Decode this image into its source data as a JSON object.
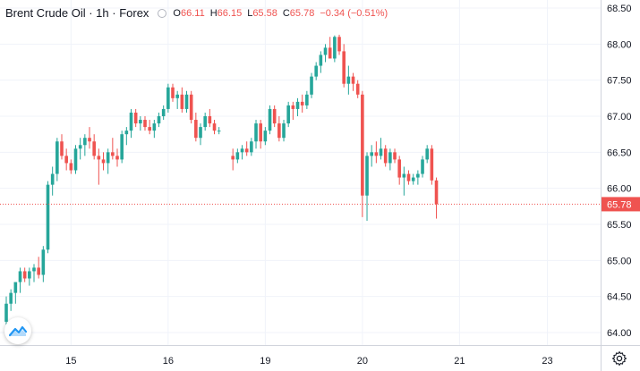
{
  "header": {
    "symbol": "Brent Crude Oil",
    "interval": "1h",
    "exchange": "Forex",
    "open_label": "O",
    "open": "66.11",
    "high_label": "H",
    "high": "66.15",
    "low_label": "L",
    "low": "65.58",
    "close_label": "C",
    "close": "65.78",
    "change": "−0.34 (−0.51%)"
  },
  "colors": {
    "up": "#26a69a",
    "down": "#ef5350",
    "grid": "#f0f3fa",
    "axis_text": "#131722"
  },
  "icons": {
    "logo": "tradingview-logo-icon",
    "settings": "gear-icon"
  },
  "chart_data": {
    "type": "candlestick",
    "title": "Brent Crude Oil · 1h · Forex",
    "xlabel": "",
    "ylabel": "",
    "ylim": [
      63.85,
      68.6
    ],
    "yticks": [
      "64.00",
      "64.50",
      "65.00",
      "65.50",
      "66.00",
      "66.50",
      "67.00",
      "67.50",
      "68.00",
      "68.50"
    ],
    "xticks": [
      {
        "label": "15",
        "index": 14
      },
      {
        "label": "16",
        "index": 35
      },
      {
        "label": "19",
        "index": 56
      },
      {
        "label": "20",
        "index": 77
      },
      {
        "label": "21",
        "index": 98
      },
      {
        "label": "23",
        "index": 117
      }
    ],
    "last_price": "65.78",
    "grid": true,
    "candles": [
      [
        64.15,
        64.5,
        64.1,
        64.4
      ],
      [
        64.4,
        64.6,
        64.3,
        64.55
      ],
      [
        64.55,
        64.7,
        64.4,
        64.7
      ],
      [
        64.7,
        64.9,
        64.55,
        64.85
      ],
      [
        64.85,
        64.9,
        64.7,
        64.75
      ],
      [
        64.75,
        64.9,
        64.65,
        64.85
      ],
      [
        64.85,
        64.95,
        64.7,
        64.9
      ],
      [
        64.9,
        65.05,
        64.75,
        64.8
      ],
      [
        64.8,
        65.2,
        64.7,
        65.15
      ],
      [
        65.15,
        66.1,
        65.1,
        66.05
      ],
      [
        66.05,
        66.3,
        65.9,
        66.2
      ],
      [
        66.2,
        66.7,
        66.1,
        66.65
      ],
      [
        66.65,
        66.75,
        66.4,
        66.45
      ],
      [
        66.45,
        66.55,
        66.25,
        66.35
      ],
      [
        66.35,
        66.4,
        66.2,
        66.25
      ],
      [
        66.25,
        66.6,
        66.2,
        66.55
      ],
      [
        66.55,
        66.7,
        66.4,
        66.6
      ],
      [
        66.6,
        66.75,
        66.45,
        66.7
      ],
      [
        66.7,
        66.85,
        66.55,
        66.65
      ],
      [
        66.65,
        66.75,
        66.4,
        66.45
      ],
      [
        66.45,
        66.55,
        66.05,
        66.4
      ],
      [
        66.4,
        66.5,
        66.25,
        66.35
      ],
      [
        66.35,
        66.55,
        66.2,
        66.5
      ],
      [
        66.5,
        66.7,
        66.4,
        66.45
      ],
      [
        66.45,
        66.55,
        66.3,
        66.4
      ],
      [
        66.4,
        66.8,
        66.35,
        66.75
      ],
      [
        66.75,
        66.85,
        66.6,
        66.8
      ],
      [
        66.8,
        67.1,
        66.7,
        67.05
      ],
      [
        67.05,
        67.1,
        66.85,
        66.9
      ],
      [
        66.9,
        67.0,
        66.8,
        66.95
      ],
      [
        66.95,
        67.0,
        66.8,
        66.85
      ],
      [
        66.85,
        66.95,
        66.75,
        66.8
      ],
      [
        66.8,
        66.95,
        66.7,
        66.9
      ],
      [
        66.9,
        67.05,
        66.85,
        67.0
      ],
      [
        67.0,
        67.15,
        66.95,
        67.1
      ],
      [
        67.1,
        67.45,
        67.05,
        67.4
      ],
      [
        67.4,
        67.45,
        67.2,
        67.25
      ],
      [
        67.25,
        67.35,
        67.1,
        67.3
      ],
      [
        67.3,
        67.4,
        67.05,
        67.1
      ],
      [
        67.1,
        67.35,
        67.05,
        67.3
      ],
      [
        67.3,
        67.35,
        66.9,
        66.95
      ],
      [
        66.95,
        67.05,
        66.65,
        66.7
      ],
      [
        66.7,
        66.9,
        66.6,
        66.85
      ],
      [
        66.85,
        67.05,
        66.8,
        67.0
      ],
      [
        67.0,
        67.1,
        66.85,
        66.9
      ],
      [
        66.9,
        66.95,
        66.75,
        66.8
      ],
      [
        66.8,
        66.85,
        66.75,
        66.8
      ],
      null,
      null,
      [
        66.45,
        66.55,
        66.25,
        66.4
      ],
      [
        66.4,
        66.55,
        66.35,
        66.5
      ],
      [
        66.5,
        66.6,
        66.4,
        66.55
      ],
      [
        66.55,
        66.65,
        66.45,
        66.5
      ],
      [
        66.5,
        66.7,
        66.45,
        66.65
      ],
      [
        66.65,
        66.95,
        66.55,
        66.9
      ],
      [
        66.9,
        66.95,
        66.55,
        66.65
      ],
      [
        66.65,
        66.85,
        66.6,
        66.8
      ],
      [
        66.8,
        67.15,
        66.75,
        67.1
      ],
      [
        67.1,
        67.15,
        66.85,
        66.9
      ],
      [
        66.9,
        67.0,
        66.65,
        66.7
      ],
      [
        66.7,
        66.95,
        66.65,
        66.9
      ],
      [
        66.9,
        67.2,
        66.85,
        67.15
      ],
      [
        67.15,
        67.2,
        66.95,
        67.1
      ],
      [
        67.1,
        67.25,
        67.0,
        67.2
      ],
      [
        67.2,
        67.3,
        67.05,
        67.15
      ],
      [
        67.15,
        67.35,
        67.1,
        67.3
      ],
      [
        67.3,
        67.6,
        67.25,
        67.55
      ],
      [
        67.55,
        67.75,
        67.5,
        67.7
      ],
      [
        67.7,
        67.9,
        67.6,
        67.85
      ],
      [
        67.85,
        68.0,
        67.75,
        67.95
      ],
      [
        67.95,
        68.1,
        67.85,
        67.8
      ],
      [
        67.8,
        68.12,
        67.75,
        68.1
      ],
      [
        68.1,
        68.13,
        67.85,
        67.9
      ],
      [
        67.9,
        68.0,
        67.4,
        67.45
      ],
      [
        67.45,
        67.7,
        67.3,
        67.55
      ],
      [
        67.55,
        67.6,
        67.35,
        67.45
      ],
      [
        67.45,
        67.5,
        67.25,
        67.3
      ],
      [
        67.3,
        67.35,
        65.6,
        65.9
      ],
      [
        65.9,
        66.5,
        65.55,
        66.45
      ],
      [
        66.45,
        66.6,
        66.3,
        66.5
      ],
      [
        66.5,
        66.65,
        66.35,
        66.45
      ],
      [
        66.45,
        66.7,
        66.4,
        66.55
      ],
      [
        66.55,
        66.6,
        66.3,
        66.35
      ],
      [
        66.35,
        66.55,
        66.25,
        66.5
      ],
      [
        66.5,
        66.55,
        66.35,
        66.4
      ],
      [
        66.4,
        66.45,
        66.05,
        66.15
      ],
      [
        66.15,
        66.3,
        65.9,
        66.2
      ],
      [
        66.2,
        66.25,
        66.05,
        66.1
      ],
      [
        66.1,
        66.2,
        66.05,
        66.15
      ],
      [
        66.15,
        66.25,
        66.05,
        66.2
      ],
      [
        66.2,
        66.45,
        66.15,
        66.4
      ],
      [
        66.4,
        66.6,
        66.35,
        66.55
      ],
      [
        66.55,
        66.6,
        66.05,
        66.11
      ],
      [
        66.11,
        66.15,
        65.58,
        65.78
      ]
    ]
  }
}
